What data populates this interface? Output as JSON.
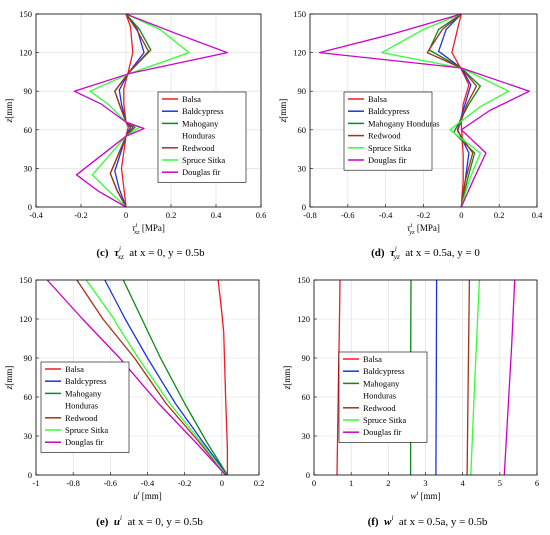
{
  "series_colors": {
    "Balsa": "#ee1c25",
    "Baldcypress": "#1a33e6",
    "Mahogany Honduras": "#0a8a16",
    "Redwood": "#a3331a",
    "Spruce Sitka": "#33ff33",
    "Douglas fir": "#cc00cc"
  },
  "chart_data": [
    {
      "type": "line",
      "panel": "c",
      "caption": {
        "letter": "(c)",
        "var": "τ",
        "sup": "i",
        "sub": "xz",
        "cond": "at x = 0, y = 0.5b"
      },
      "xlabel": {
        "sym": "τ",
        "sup": "i",
        "sub": "xz",
        "unit": "[MPa]"
      },
      "ylabel": {
        "sym": "z",
        "unit": "[mm]"
      },
      "xlim": [
        -0.4,
        0.6
      ],
      "ylim": [
        0,
        150
      ],
      "xticks": [
        "-0.4",
        "-0.2",
        "0",
        "0.2",
        "0.4",
        "0.6"
      ],
      "yticks": [
        "0",
        "30",
        "60",
        "90",
        "120",
        "150"
      ],
      "grid": true,
      "legend": "lower-right",
      "series": [
        {
          "name": "Balsa",
          "points": [
            [
              0,
              150
            ],
            [
              0.02,
              140
            ],
            [
              0.03,
              120
            ],
            [
              0.01,
              105
            ],
            [
              -0.01,
              92
            ],
            [
              -0.01,
              80
            ],
            [
              0,
              66
            ],
            [
              0.01,
              62
            ],
            [
              0,
              55
            ],
            [
              -0.02,
              30
            ],
            [
              -0.01,
              15
            ],
            [
              0,
              0
            ]
          ]
        },
        {
          "name": "Baldcypress",
          "points": [
            [
              0,
              150
            ],
            [
              0.05,
              138
            ],
            [
              0.08,
              120
            ],
            [
              0.01,
              104
            ],
            [
              -0.03,
              91
            ],
            [
              -0.02,
              80
            ],
            [
              0,
              66
            ],
            [
              0.02,
              62
            ],
            [
              0,
              55
            ],
            [
              -0.05,
              28
            ],
            [
              -0.03,
              14
            ],
            [
              0,
              0
            ]
          ]
        },
        {
          "name": "Mahogany Honduras",
          "points": [
            [
              0,
              150
            ],
            [
              0.06,
              138
            ],
            [
              0.11,
              122
            ],
            [
              0.01,
              104
            ],
            [
              -0.05,
              90
            ],
            [
              -0.03,
              80
            ],
            [
              0,
              66
            ],
            [
              0.04,
              62
            ],
            [
              0,
              55
            ],
            [
              -0.07,
              26
            ],
            [
              -0.04,
              13
            ],
            [
              0,
              0
            ]
          ]
        },
        {
          "name": "Redwood",
          "points": [
            [
              0,
              150
            ],
            [
              0.05,
              137
            ],
            [
              0.1,
              121
            ],
            [
              0.01,
              104
            ],
            [
              -0.05,
              90
            ],
            [
              -0.03,
              80
            ],
            [
              0,
              66
            ],
            [
              0.03,
              62
            ],
            [
              0,
              55
            ],
            [
              -0.07,
              26
            ],
            [
              -0.04,
              13
            ],
            [
              0,
              0
            ]
          ]
        },
        {
          "name": "Spruce Sitka",
          "points": [
            [
              0,
              150
            ],
            [
              0.15,
              138
            ],
            [
              0.28,
              120
            ],
            [
              0.02,
              104
            ],
            [
              -0.16,
              90
            ],
            [
              -0.08,
              80
            ],
            [
              0,
              66
            ],
            [
              0.06,
              62
            ],
            [
              0,
              55
            ],
            [
              -0.15,
              25
            ],
            [
              -0.08,
              13
            ],
            [
              0,
              0
            ]
          ]
        },
        {
          "name": "Douglas fir",
          "points": [
            [
              0,
              150
            ],
            [
              0.22,
              135
            ],
            [
              0.45,
              120
            ],
            [
              0.02,
              104
            ],
            [
              -0.23,
              90
            ],
            [
              -0.11,
              80
            ],
            [
              0,
              66
            ],
            [
              0.08,
              61
            ],
            [
              0,
              55
            ],
            [
              -0.22,
              25
            ],
            [
              -0.12,
              12
            ],
            [
              0,
              0
            ]
          ]
        }
      ]
    },
    {
      "type": "line",
      "panel": "d",
      "caption": {
        "letter": "(d)",
        "var": "τ",
        "sup": "i",
        "sub": "yz",
        "cond": "at x = 0.5a, y = 0"
      },
      "xlabel": {
        "sym": "τ",
        "sup": "i",
        "sub": "yz",
        "unit": "[MPa]"
      },
      "ylabel": {
        "sym": "z",
        "unit": "[mm]"
      },
      "xlim": [
        -0.8,
        0.4
      ],
      "ylim": [
        0,
        150
      ],
      "xticks": [
        "-0.8",
        "-0.6",
        "-0.4",
        "-0.2",
        "0",
        "0.2",
        "0.4"
      ],
      "yticks": [
        "0",
        "30",
        "60",
        "90",
        "120",
        "150"
      ],
      "grid": true,
      "legend": "lower-left",
      "series": [
        {
          "name": "Balsa",
          "points": [
            [
              0,
              150
            ],
            [
              -0.02,
              138
            ],
            [
              -0.05,
              120
            ],
            [
              0,
              107
            ],
            [
              0.04,
              95
            ],
            [
              0.01,
              80
            ],
            [
              0,
              65
            ],
            [
              0.01,
              40
            ],
            [
              0.01,
              20
            ],
            [
              0,
              0
            ]
          ]
        },
        {
          "name": "Baldcypress",
          "points": [
            [
              0,
              150
            ],
            [
              -0.08,
              138
            ],
            [
              -0.12,
              121
            ],
            [
              0,
              108
            ],
            [
              0.05,
              95
            ],
            [
              0.02,
              80
            ],
            [
              -0.02,
              60
            ],
            [
              0.04,
              42
            ],
            [
              0.02,
              20
            ],
            [
              0,
              0
            ]
          ]
        },
        {
          "name": "Mahogany Honduras",
          "points": [
            [
              0,
              150
            ],
            [
              -0.12,
              138
            ],
            [
              -0.17,
              122
            ],
            [
              0,
              108
            ],
            [
              0.1,
              94
            ],
            [
              0.04,
              80
            ],
            [
              -0.04,
              58
            ],
            [
              0.07,
              42
            ],
            [
              0.03,
              20
            ],
            [
              0,
              0
            ]
          ]
        },
        {
          "name": "Redwood",
          "points": [
            [
              0,
              150
            ],
            [
              -0.1,
              138
            ],
            [
              -0.18,
              120
            ],
            [
              0,
              108
            ],
            [
              0.08,
              94
            ],
            [
              0.03,
              80
            ],
            [
              -0.02,
              59
            ],
            [
              0.06,
              42
            ],
            [
              0.02,
              20
            ],
            [
              0,
              0
            ]
          ]
        },
        {
          "name": "Spruce Sitka",
          "points": [
            [
              0,
              150
            ],
            [
              -0.2,
              138
            ],
            [
              -0.42,
              120
            ],
            [
              0,
              108
            ],
            [
              0.25,
              90
            ],
            [
              0.1,
              78
            ],
            [
              -0.06,
              60
            ],
            [
              0.1,
              42
            ],
            [
              0.04,
              20
            ],
            [
              0,
              0
            ]
          ]
        },
        {
          "name": "Douglas fir",
          "points": [
            [
              0,
              150
            ],
            [
              -0.35,
              135
            ],
            [
              -0.75,
              120
            ],
            [
              0,
              108
            ],
            [
              0.36,
              90
            ],
            [
              0.15,
              75
            ],
            [
              0,
              60
            ],
            [
              0.13,
              42
            ],
            [
              0.06,
              20
            ],
            [
              0,
              0
            ]
          ]
        }
      ]
    },
    {
      "type": "line",
      "panel": "e",
      "caption": {
        "letter": "(e)",
        "var": "u",
        "sup": "i",
        "sub": "",
        "cond": "at x = 0, y = 0.5b"
      },
      "xlabel": {
        "sym": "u",
        "sup": "i",
        "sub": "",
        "unit": "[mm]"
      },
      "ylabel": {
        "sym": "z",
        "unit": "[mm]"
      },
      "xlim": [
        -1,
        0.2
      ],
      "ylim": [
        0,
        150
      ],
      "xticks": [
        "-1",
        "-0.8",
        "-0.6",
        "-0.4",
        "-0.2",
        "0",
        "0.2"
      ],
      "yticks": [
        "0",
        "30",
        "60",
        "90",
        "120",
        "150"
      ],
      "grid": true,
      "legend": "lower-left",
      "series": [
        {
          "name": "Balsa",
          "points": [
            [
              -0.02,
              150
            ],
            [
              0,
              125
            ],
            [
              0.01,
              110
            ],
            [
              0.02,
              60
            ],
            [
              0.03,
              20
            ],
            [
              0.03,
              0
            ]
          ]
        },
        {
          "name": "Baldcypress",
          "points": [
            [
              -0.63,
              150
            ],
            [
              -0.52,
              120
            ],
            [
              -0.4,
              90
            ],
            [
              -0.25,
              55
            ],
            [
              -0.1,
              25
            ],
            [
              0.03,
              0
            ]
          ]
        },
        {
          "name": "Mahogany Honduras",
          "points": [
            [
              -0.53,
              150
            ],
            [
              -0.43,
              120
            ],
            [
              -0.33,
              90
            ],
            [
              -0.2,
              55
            ],
            [
              -0.08,
              25
            ],
            [
              0.03,
              0
            ]
          ]
        },
        {
          "name": "Redwood",
          "points": [
            [
              -0.78,
              150
            ],
            [
              -0.64,
              120
            ],
            [
              -0.47,
              90
            ],
            [
              -0.3,
              55
            ],
            [
              -0.12,
              25
            ],
            [
              0.02,
              0
            ]
          ]
        },
        {
          "name": "Spruce Sitka",
          "points": [
            [
              -0.73,
              150
            ],
            [
              -0.58,
              120
            ],
            [
              -0.57,
              117
            ],
            [
              -0.45,
              90
            ],
            [
              -0.28,
              55
            ],
            [
              -0.11,
              25
            ],
            [
              0.02,
              0
            ]
          ]
        },
        {
          "name": "Douglas fir",
          "points": [
            [
              -0.94,
              150
            ],
            [
              -0.75,
              120
            ],
            [
              -0.55,
              90
            ],
            [
              -0.34,
              55
            ],
            [
              -0.14,
              25
            ],
            [
              0.02,
              0
            ]
          ]
        }
      ]
    },
    {
      "type": "line",
      "panel": "f",
      "caption": {
        "letter": "(f)",
        "var": "w",
        "sup": "i",
        "sub": "",
        "cond": "at x = 0.5a, y = 0.5b"
      },
      "xlabel": {
        "sym": "w",
        "sup": "i",
        "sub": "",
        "unit": "[mm]"
      },
      "ylabel": {
        "sym": "z",
        "unit": "[mm]"
      },
      "xlim": [
        0,
        6
      ],
      "ylim": [
        0,
        150
      ],
      "xticks": [
        "0",
        "1",
        "2",
        "3",
        "4",
        "5",
        "6"
      ],
      "yticks": [
        "0",
        "30",
        "60",
        "90",
        "120",
        "150"
      ],
      "grid": true,
      "legend": "upper-left",
      "series": [
        {
          "name": "Balsa",
          "points": [
            [
              0.62,
              0
            ],
            [
              0.64,
              40
            ],
            [
              0.66,
              75
            ],
            [
              0.68,
              110
            ],
            [
              0.7,
              150
            ]
          ]
        },
        {
          "name": "Baldcypress",
          "points": [
            [
              3.28,
              0
            ],
            [
              3.29,
              75
            ],
            [
              3.3,
              150
            ]
          ]
        },
        {
          "name": "Mahogany Honduras",
          "points": [
            [
              2.6,
              0
            ],
            [
              2.6,
              75
            ],
            [
              2.61,
              150
            ]
          ]
        },
        {
          "name": "Redwood",
          "points": [
            [
              4.12,
              0
            ],
            [
              4.15,
              75
            ],
            [
              4.18,
              150
            ]
          ]
        },
        {
          "name": "Spruce Sitka",
          "points": [
            [
              4.22,
              0
            ],
            [
              4.33,
              75
            ],
            [
              4.45,
              150
            ]
          ]
        },
        {
          "name": "Douglas fir",
          "points": [
            [
              5.12,
              0
            ],
            [
              5.22,
              50
            ],
            [
              5.32,
              100
            ],
            [
              5.4,
              150
            ]
          ]
        }
      ]
    }
  ]
}
